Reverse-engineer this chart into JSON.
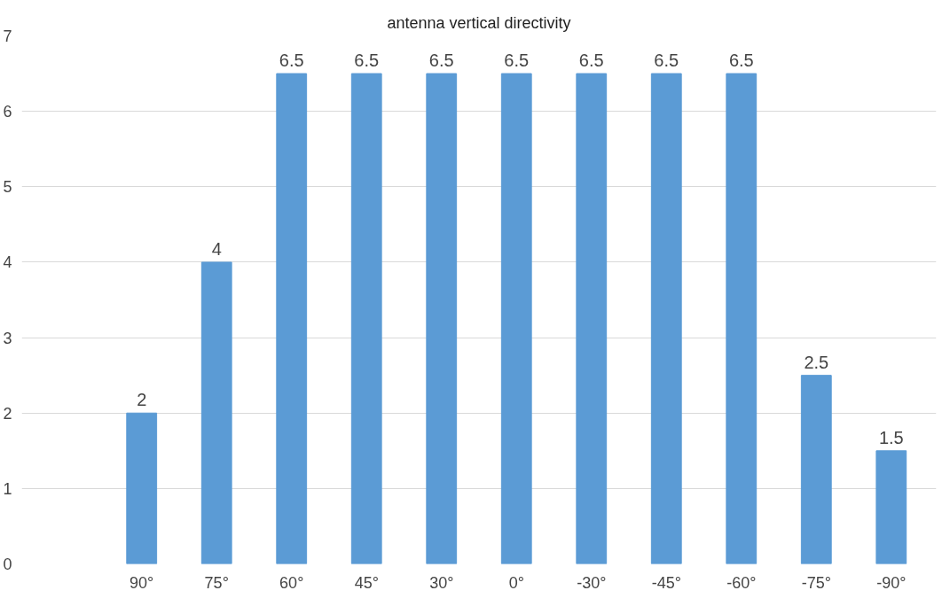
{
  "chart_data": {
    "type": "bar",
    "title": "antenna vertical directivity",
    "categories": [
      null,
      "90°",
      "75°",
      "60°",
      "45°",
      "30°",
      "0°",
      "-30°",
      "-45°",
      "-60°",
      "-75°",
      "-90°"
    ],
    "values": [
      null,
      2,
      4,
      6.5,
      6.5,
      6.5,
      6.5,
      6.5,
      6.5,
      6.5,
      2.5,
      1.5
    ],
    "color": "#5b9bd5",
    "ylim": [
      0,
      7
    ],
    "yticks": [
      0,
      1,
      2,
      3,
      4,
      5,
      6,
      7
    ],
    "grid": "y",
    "data_labels": true
  }
}
